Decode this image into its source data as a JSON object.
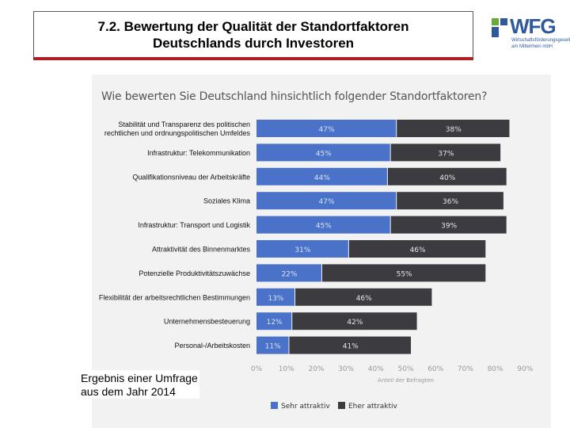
{
  "slide": {
    "title_line1": "7.2.  Bewertung der Qualität der Standortfaktoren",
    "title_line2": "Deutschlands durch Investoren"
  },
  "logo": {
    "text": "WFG",
    "subtitle_line1": "Wirtschaftsförderungsgesellschaft",
    "subtitle_line2": "am Mittelrhein mbH"
  },
  "note": {
    "line1": "Ergebnis einer Umfrage",
    "line2": "aus dem Jahr 2014"
  },
  "colors": {
    "blue": "#4a72c8",
    "dark": "#3c3c40",
    "brand": "#2e5a9c",
    "accent_red": "#b11e24"
  },
  "chart_data": {
    "type": "bar",
    "orientation": "horizontal",
    "stacked": true,
    "title": "Wie bewerten Sie Deutschland hinsichtlich folgender Standortfaktoren?",
    "categories": [
      [
        "Stabilität und Transparenz des politischen",
        "rechtlichen und ordnungspolitischen Umfeldes"
      ],
      [
        "Infrastruktur: Telekommunikation"
      ],
      [
        "Qualifikationsniveau der Arbeitskräfte"
      ],
      [
        "Soziales Klima"
      ],
      [
        "Infrastruktur: Transport und Logistik"
      ],
      [
        "Attraktivität des Binnenmarktes"
      ],
      [
        "Potenzielle Produktivitätszuwächse"
      ],
      [
        "Flexibilität der arbeitsrechtlichen Bestimmungen"
      ],
      [
        "Unternehmensbesteuerung"
      ],
      [
        "Personal-/Arbeitskosten"
      ]
    ],
    "series": [
      {
        "name": "Sehr attraktiv",
        "values": [
          47,
          45,
          44,
          47,
          45,
          31,
          22,
          13,
          12,
          11
        ]
      },
      {
        "name": "Eher attraktiv",
        "values": [
          38,
          37,
          40,
          36,
          39,
          46,
          55,
          46,
          42,
          41
        ]
      }
    ],
    "xlim": [
      0,
      90
    ],
    "xticks": [
      "0%",
      "10%",
      "20%",
      "30%",
      "40%",
      "50%",
      "60%",
      "70%",
      "80%",
      "90%"
    ],
    "xlabel": "Anteil der Befragten",
    "legend_position": "bottom"
  }
}
